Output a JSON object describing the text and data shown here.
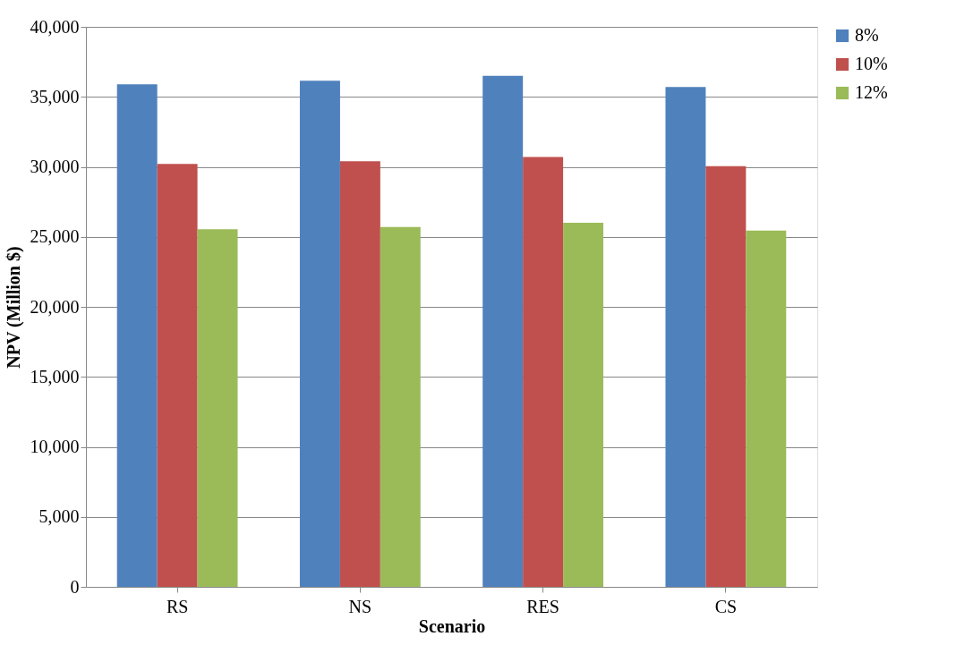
{
  "chart_data": {
    "type": "bar",
    "xlabel": "Scenario",
    "ylabel": "NPV (Million $)",
    "categories": [
      "RS",
      "NS",
      "RES",
      "CS"
    ],
    "series": [
      {
        "name": "8%",
        "color": "#4f81bd",
        "values": [
          35900,
          36150,
          36500,
          35700
        ]
      },
      {
        "name": "10%",
        "color": "#c0504d",
        "values": [
          30200,
          30400,
          30700,
          30050
        ]
      },
      {
        "name": "12%",
        "color": "#9bbb59",
        "values": [
          25550,
          25700,
          26000,
          25450
        ]
      }
    ],
    "ylim": [
      0,
      40000
    ],
    "yticks": [
      0,
      {
        "value": 5000,
        "label": "5,000"
      },
      {
        "value": 10000,
        "label": "10,000"
      },
      {
        "value": 15000,
        "label": "15,000"
      },
      {
        "value": 20000,
        "label": "20,000"
      },
      {
        "value": 25000,
        "label": "25,000"
      },
      {
        "value": 30000,
        "label": "30,000"
      },
      {
        "value": 35000,
        "label": "35,000"
      },
      {
        "value": 40000,
        "label": "40,000"
      }
    ],
    "grid": "y",
    "legend": "right"
  }
}
